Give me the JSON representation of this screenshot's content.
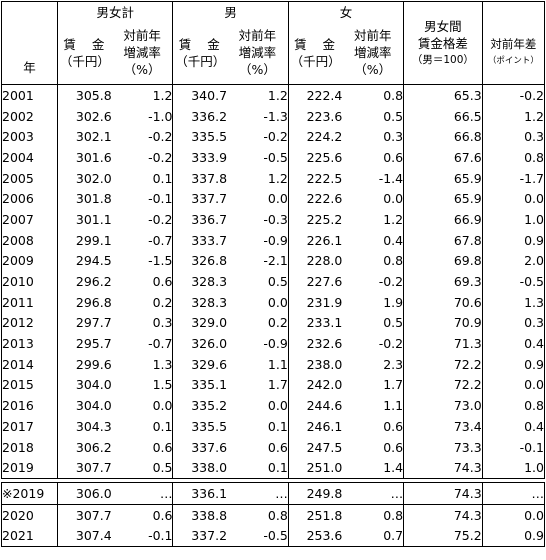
{
  "headers": {
    "year": "年",
    "total_group": "男女計",
    "male_group": "男",
    "female_group": "女",
    "wage_line1": "賃 金",
    "wage_line2": "（千円）",
    "rate_line1": "対前年",
    "rate_line2": "増減率",
    "rate_line3": "（%）",
    "gap_line1": "男女間",
    "gap_line2": "賃金格差",
    "gap_line3": "（男＝100）",
    "diff_line1": "対前年差",
    "diff_line2": "（ポイント）"
  },
  "rows": [
    {
      "year": "2001",
      "total_wage": "305.8",
      "total_rate": "1.2",
      "male_wage": "340.7",
      "male_rate": "1.2",
      "female_wage": "222.4",
      "female_rate": "0.8",
      "gap": "65.3",
      "gap_diff": "-0.2"
    },
    {
      "year": "2002",
      "total_wage": "302.6",
      "total_rate": "-1.0",
      "male_wage": "336.2",
      "male_rate": "-1.3",
      "female_wage": "223.6",
      "female_rate": "0.5",
      "gap": "66.5",
      "gap_diff": "1.2"
    },
    {
      "year": "2003",
      "total_wage": "302.1",
      "total_rate": "-0.2",
      "male_wage": "335.5",
      "male_rate": "-0.2",
      "female_wage": "224.2",
      "female_rate": "0.3",
      "gap": "66.8",
      "gap_diff": "0.3"
    },
    {
      "year": "2004",
      "total_wage": "301.6",
      "total_rate": "-0.2",
      "male_wage": "333.9",
      "male_rate": "-0.5",
      "female_wage": "225.6",
      "female_rate": "0.6",
      "gap": "67.6",
      "gap_diff": "0.8"
    },
    {
      "year": "2005",
      "total_wage": "302.0",
      "total_rate": "0.1",
      "male_wage": "337.8",
      "male_rate": "1.2",
      "female_wage": "222.5",
      "female_rate": "-1.4",
      "gap": "65.9",
      "gap_diff": "-1.7"
    },
    {
      "year": "2006",
      "total_wage": "301.8",
      "total_rate": "-0.1",
      "male_wage": "337.7",
      "male_rate": "0.0",
      "female_wage": "222.6",
      "female_rate": "0.0",
      "gap": "65.9",
      "gap_diff": "0.0"
    },
    {
      "year": "2007",
      "total_wage": "301.1",
      "total_rate": "-0.2",
      "male_wage": "336.7",
      "male_rate": "-0.3",
      "female_wage": "225.2",
      "female_rate": "1.2",
      "gap": "66.9",
      "gap_diff": "1.0"
    },
    {
      "year": "2008",
      "total_wage": "299.1",
      "total_rate": "-0.7",
      "male_wage": "333.7",
      "male_rate": "-0.9",
      "female_wage": "226.1",
      "female_rate": "0.4",
      "gap": "67.8",
      "gap_diff": "0.9"
    },
    {
      "year": "2009",
      "total_wage": "294.5",
      "total_rate": "-1.5",
      "male_wage": "326.8",
      "male_rate": "-2.1",
      "female_wage": "228.0",
      "female_rate": "0.8",
      "gap": "69.8",
      "gap_diff": "2.0"
    },
    {
      "year": "2010",
      "total_wage": "296.2",
      "total_rate": "0.6",
      "male_wage": "328.3",
      "male_rate": "0.5",
      "female_wage": "227.6",
      "female_rate": "-0.2",
      "gap": "69.3",
      "gap_diff": "-0.5"
    },
    {
      "year": "2011",
      "total_wage": "296.8",
      "total_rate": "0.2",
      "male_wage": "328.3",
      "male_rate": "0.0",
      "female_wage": "231.9",
      "female_rate": "1.9",
      "gap": "70.6",
      "gap_diff": "1.3"
    },
    {
      "year": "2012",
      "total_wage": "297.7",
      "total_rate": "0.3",
      "male_wage": "329.0",
      "male_rate": "0.2",
      "female_wage": "233.1",
      "female_rate": "0.5",
      "gap": "70.9",
      "gap_diff": "0.3"
    },
    {
      "year": "2013",
      "total_wage": "295.7",
      "total_rate": "-0.7",
      "male_wage": "326.0",
      "male_rate": "-0.9",
      "female_wage": "232.6",
      "female_rate": "-0.2",
      "gap": "71.3",
      "gap_diff": "0.4"
    },
    {
      "year": "2014",
      "total_wage": "299.6",
      "total_rate": "1.3",
      "male_wage": "329.6",
      "male_rate": "1.1",
      "female_wage": "238.0",
      "female_rate": "2.3",
      "gap": "72.2",
      "gap_diff": "0.9"
    },
    {
      "year": "2015",
      "total_wage": "304.0",
      "total_rate": "1.5",
      "male_wage": "335.1",
      "male_rate": "1.7",
      "female_wage": "242.0",
      "female_rate": "1.7",
      "gap": "72.2",
      "gap_diff": "0.0"
    },
    {
      "year": "2016",
      "total_wage": "304.0",
      "total_rate": "0.0",
      "male_wage": "335.2",
      "male_rate": "0.0",
      "female_wage": "244.6",
      "female_rate": "1.1",
      "gap": "73.0",
      "gap_diff": "0.8"
    },
    {
      "year": "2017",
      "total_wage": "304.3",
      "total_rate": "0.1",
      "male_wage": "335.5",
      "male_rate": "0.1",
      "female_wage": "246.1",
      "female_rate": "0.6",
      "gap": "73.4",
      "gap_diff": "0.4"
    },
    {
      "year": "2018",
      "total_wage": "306.2",
      "total_rate": "0.6",
      "male_wage": "337.6",
      "male_rate": "0.6",
      "female_wage": "247.5",
      "female_rate": "0.6",
      "gap": "73.3",
      "gap_diff": "-0.1"
    },
    {
      "year": "2019",
      "total_wage": "307.7",
      "total_rate": "0.5",
      "male_wage": "338.0",
      "male_rate": "0.1",
      "female_wage": "251.0",
      "female_rate": "1.4",
      "gap": "74.3",
      "gap_diff": "1.0"
    }
  ],
  "ref_row": {
    "year": "※2019",
    "total_wage": "306.0",
    "total_rate": "…",
    "male_wage": "336.1",
    "male_rate": "…",
    "female_wage": "249.8",
    "female_rate": "…",
    "gap": "74.3",
    "gap_diff": "…"
  },
  "recent_rows": [
    {
      "year": "2020",
      "total_wage": "307.7",
      "total_rate": "0.6",
      "male_wage": "338.8",
      "male_rate": "0.8",
      "female_wage": "251.8",
      "female_rate": "0.8",
      "gap": "74.3",
      "gap_diff": "0.0"
    },
    {
      "year": "2021",
      "total_wage": "307.4",
      "total_rate": "-0.1",
      "male_wage": "337.2",
      "male_rate": "-0.5",
      "female_wage": "253.6",
      "female_rate": "0.7",
      "gap": "75.2",
      "gap_diff": "0.9"
    }
  ]
}
